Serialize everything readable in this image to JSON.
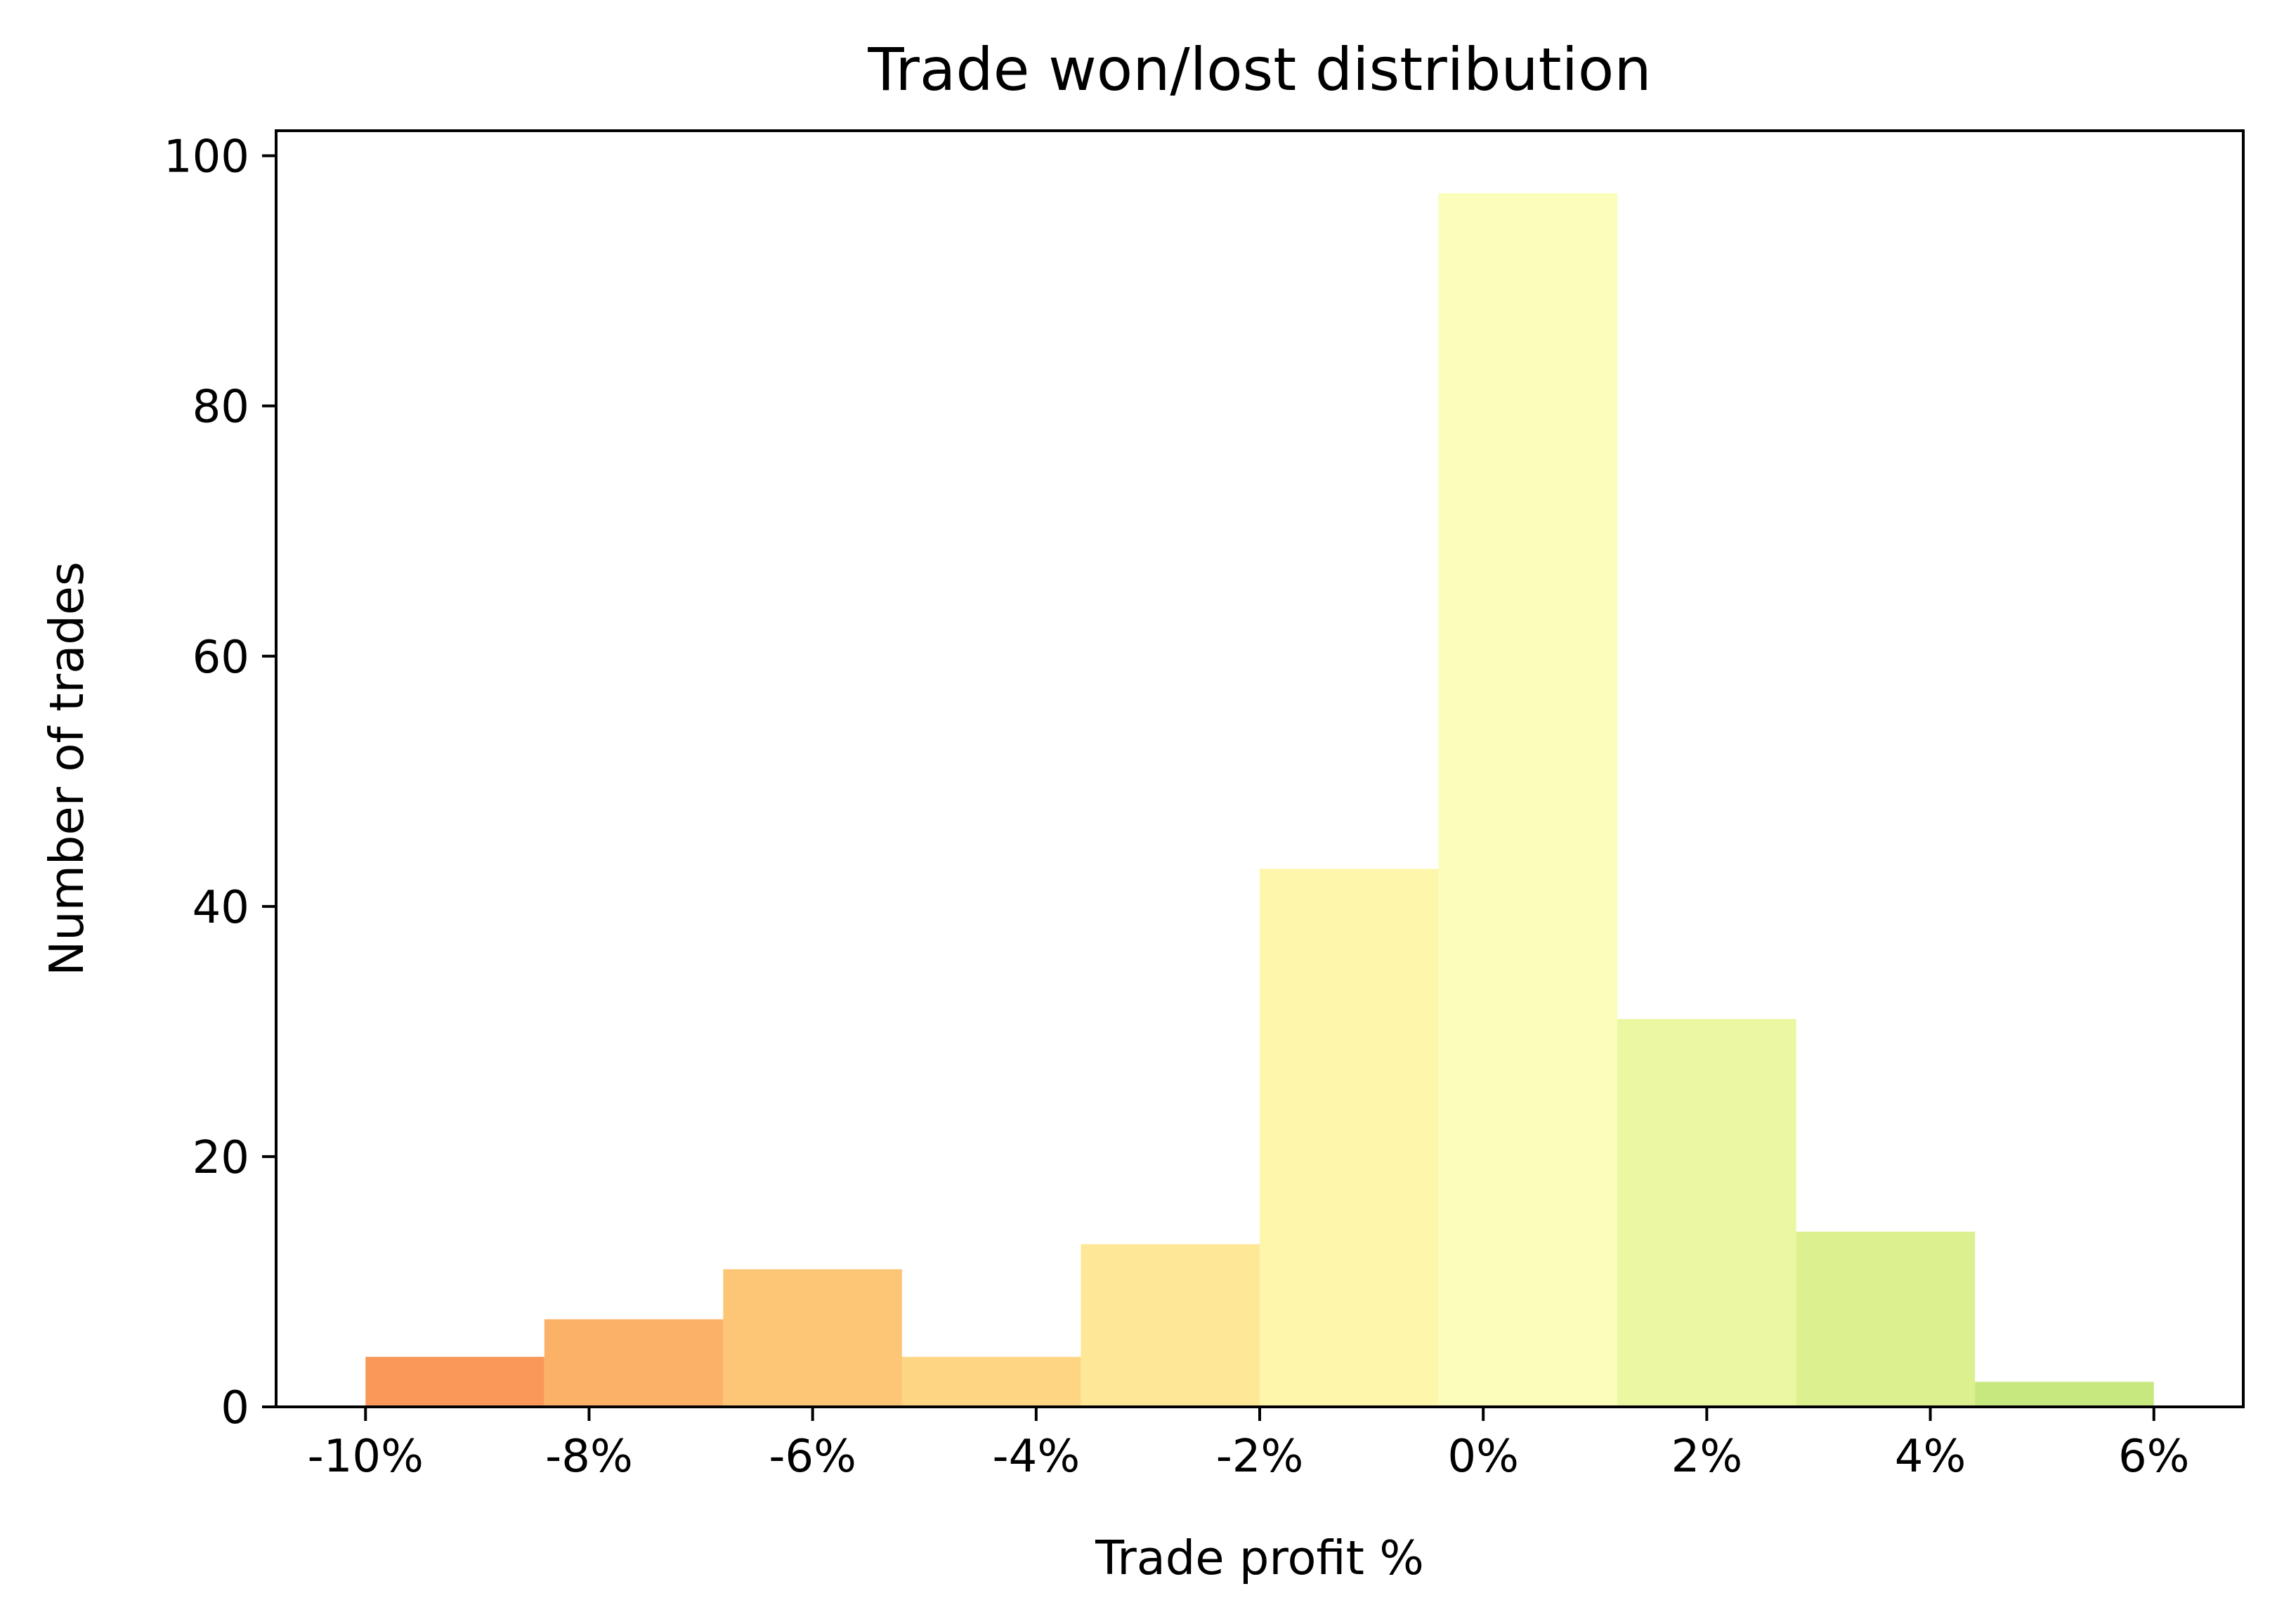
{
  "chart_data": {
    "type": "bar",
    "title": "Trade won/lost distribution",
    "xlabel": "Trade profit %",
    "ylabel": "Number of trades",
    "bin_edges": [
      -10.0,
      -8.4,
      -6.8,
      -5.2,
      -3.6,
      -2.0,
      -0.4,
      1.2,
      2.8,
      4.4,
      6.0
    ],
    "values": [
      4,
      7,
      11,
      4,
      13,
      43,
      97,
      31,
      14,
      2
    ],
    "colors": [
      "#f99858",
      "#fbb266",
      "#fdc677",
      "#fed683",
      "#fee898",
      "#fef6aa",
      "#fbfdba",
      "#ecf7a1",
      "#dcf08f",
      "#c7e77f"
    ],
    "xlim": [
      -10.8,
      6.8
    ],
    "ylim": [
      0,
      102
    ],
    "x_ticks": [
      -10,
      -8,
      -6,
      -4,
      -2,
      0,
      2,
      4,
      6
    ],
    "x_tick_labels": [
      "-10%",
      "-8%",
      "-6%",
      "-4%",
      "-2%",
      "0%",
      "2%",
      "4%",
      "6%"
    ],
    "y_ticks": [
      0,
      20,
      40,
      60,
      80,
      100
    ],
    "y_tick_labels": [
      "0",
      "20",
      "40",
      "60",
      "80",
      "100"
    ],
    "grid": false,
    "legend": "none"
  }
}
